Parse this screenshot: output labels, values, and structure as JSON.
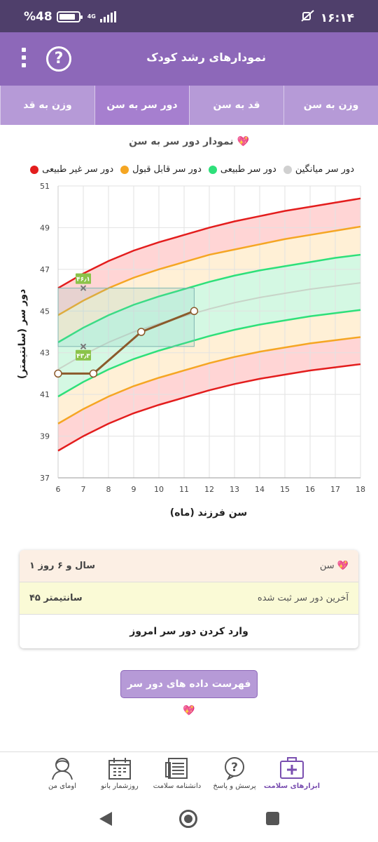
{
  "status_bar": {
    "battery": "48",
    "battery_prefix": "%",
    "network": "4G",
    "time": "۱۶:۱۴"
  },
  "app_bar": {
    "title": "نمودارهای رشد کودک",
    "help_symbol": "?"
  },
  "tabs": [
    {
      "label": "وزن به سن",
      "active": false
    },
    {
      "label": "قد به سن",
      "active": false
    },
    {
      "label": "دور سر به سن",
      "active": true
    },
    {
      "label": "وزن به قد",
      "active": false
    }
  ],
  "chart_title": "نمودار دور سر به سن 💖",
  "legend": [
    {
      "label": "دور سر غیر طبیعی",
      "color": "#e31d1d"
    },
    {
      "label": "دور سر قابل قبول",
      "color": "#f5a623"
    },
    {
      "label": "دور سر طبیعی",
      "color": "#2ee07a"
    },
    {
      "label": "دور سر میانگین",
      "color": "#d0d0d0"
    }
  ],
  "chart_data": {
    "type": "line",
    "xlabel": "سن فرزند (ماه)",
    "ylabel": "دور سر (سانتیمتر)",
    "xlim": [
      6,
      18
    ],
    "ylim": [
      37,
      51
    ],
    "xticks": [
      6,
      7,
      8,
      9,
      10,
      11,
      12,
      13,
      14,
      15,
      16,
      17,
      18
    ],
    "yticks": [
      37,
      39,
      41,
      43,
      45,
      47,
      49,
      51
    ],
    "x": [
      6,
      7,
      8,
      9,
      10,
      11,
      12,
      13,
      14,
      15,
      16,
      17,
      18
    ],
    "series": [
      {
        "key": "red_upper",
        "color": "#e31d1d",
        "values": [
          46.1,
          46.8,
          47.4,
          47.9,
          48.3,
          48.65,
          49.0,
          49.3,
          49.55,
          49.8,
          50.0,
          50.2,
          50.4
        ]
      },
      {
        "key": "orange_upper",
        "color": "#f5a623",
        "values": [
          44.8,
          45.5,
          46.1,
          46.6,
          47.0,
          47.35,
          47.7,
          47.95,
          48.2,
          48.45,
          48.65,
          48.85,
          49.05
        ]
      },
      {
        "key": "green_upper",
        "color": "#2ee07a",
        "values": [
          43.5,
          44.2,
          44.8,
          45.3,
          45.7,
          46.05,
          46.4,
          46.7,
          46.95,
          47.15,
          47.35,
          47.55,
          47.7
        ]
      },
      {
        "key": "mean",
        "color": "#c8d4c8",
        "values": [
          42.2,
          42.9,
          43.5,
          44.0,
          44.4,
          44.75,
          45.1,
          45.4,
          45.65,
          45.85,
          46.05,
          46.2,
          46.35
        ]
      },
      {
        "key": "green_lower",
        "color": "#2ee07a",
        "values": [
          40.9,
          41.6,
          42.2,
          42.7,
          43.1,
          43.45,
          43.8,
          44.1,
          44.35,
          44.55,
          44.75,
          44.9,
          45.05
        ]
      },
      {
        "key": "orange_lower",
        "color": "#f5a623",
        "values": [
          39.6,
          40.3,
          40.9,
          41.4,
          41.8,
          42.15,
          42.5,
          42.8,
          43.05,
          43.25,
          43.45,
          43.6,
          43.75
        ]
      },
      {
        "key": "red_lower",
        "color": "#e31d1d",
        "values": [
          38.3,
          39.0,
          39.6,
          40.1,
          40.5,
          40.85,
          41.2,
          41.5,
          41.75,
          41.95,
          42.15,
          42.3,
          42.45
        ]
      }
    ],
    "measurements": {
      "color": "#8b5a2b",
      "points": [
        [
          6,
          42
        ],
        [
          7.4,
          42
        ],
        [
          9.3,
          44
        ],
        [
          11.4,
          45
        ]
      ]
    },
    "highlight": {
      "x_from": 6,
      "x_to": 11.4,
      "y_from": 43.3,
      "y_to": 46.1,
      "upper_label": "۴۶٫۱",
      "lower_label": "۴۳٫۳",
      "marker_x": 7
    }
  },
  "info_card": {
    "age_label": "سن 💖",
    "age_value": "۱ سال و ۶ روز",
    "last_label": "آخرین دور سر ثبت شده",
    "last_value": "۴۵ سانتیمتر",
    "action": "وارد کردن دور سر امروز"
  },
  "list_button": "فهرست داده های دور سر 💖",
  "bottom_nav": [
    {
      "label": "ابزارهای سلامت",
      "icon": "medical-kit-icon",
      "active": true
    },
    {
      "label": "پرسش و پاسخ",
      "icon": "question-bubble-icon",
      "active": false
    },
    {
      "label": "دانشنامه سلامت",
      "icon": "encyclopedia-icon",
      "active": false
    },
    {
      "label": "روزشمار بانو",
      "icon": "calendar-icon",
      "active": false
    },
    {
      "label": "اومای من",
      "icon": "profile-icon",
      "active": false
    }
  ]
}
